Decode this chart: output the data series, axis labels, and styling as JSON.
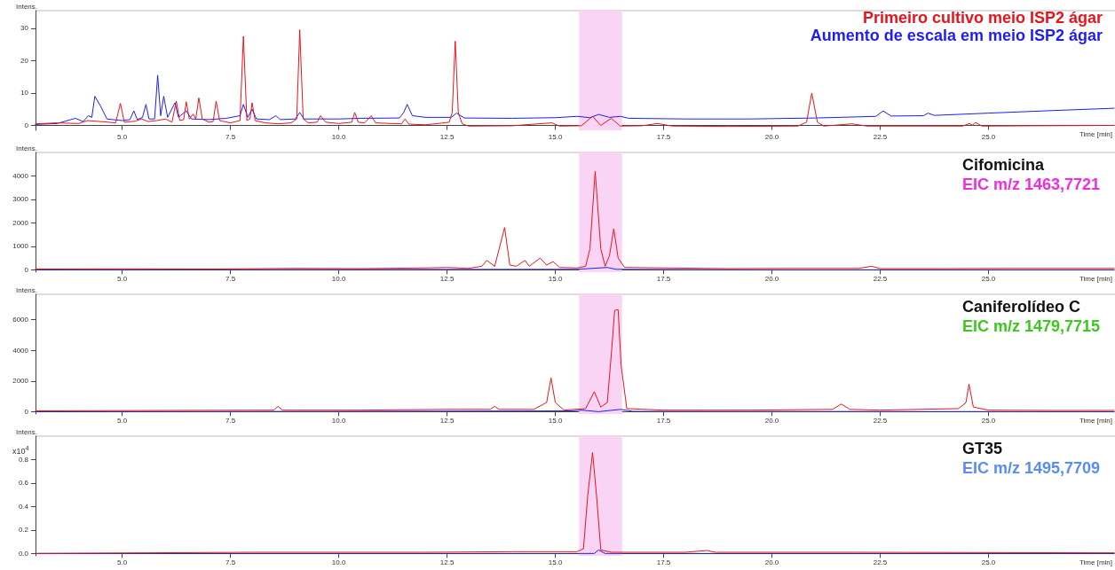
{
  "chart_data": [
    {
      "type": "line",
      "ylabel": "Intens.",
      "xlabel": "Time [min]",
      "legend": "top right",
      "grid": false,
      "marker": "none",
      "xlim": [
        3.0,
        27.9
      ],
      "xticks": [
        {
          "value": 5,
          "label": "5.0"
        },
        7.5,
        {
          "value": 10,
          "label": "10.0"
        },
        12.5,
        {
          "value": 15,
          "label": "15.0"
        },
        17.5,
        {
          "value": 20,
          "label": "20.0"
        },
        22.5,
        {
          "value": 25,
          "label": "25.0"
        }
      ],
      "ylim": [
        -1.5,
        35.4
      ],
      "yticks": [
        0,
        10,
        20,
        30
      ],
      "bands": [
        {
          "axis": "x",
          "from": 15.55,
          "to": 16.54,
          "color": "#fad4f4"
        }
      ],
      "series": [
        {
          "name": "Primeiro cultivo meio ISP2 ágar",
          "color": "#e8141b",
          "x": [
            3.0,
            3.5,
            4.0,
            4.2,
            4.5,
            4.85,
            4.96,
            5.05,
            5.3,
            5.45,
            5.6,
            5.8,
            6.0,
            6.15,
            6.25,
            6.33,
            6.42,
            6.48,
            6.55,
            6.64,
            6.7,
            6.77,
            6.85,
            7.0,
            7.1,
            7.17,
            7.25,
            7.5,
            7.72,
            7.8,
            7.88,
            7.95,
            8.0,
            8.07,
            8.3,
            8.6,
            8.9,
            9.03,
            9.1,
            9.18,
            9.3,
            9.5,
            9.58,
            9.7,
            10.0,
            10.3,
            10.37,
            10.45,
            10.6,
            10.75,
            10.85,
            11.2,
            11.45,
            11.53,
            11.62,
            12.0,
            12.3,
            12.55,
            12.62,
            12.69,
            12.76,
            12.85,
            13.0,
            14.0,
            14.92,
            15.1,
            15.6,
            15.86,
            16.05,
            16.29,
            16.5,
            17.0,
            17.36,
            17.7,
            19.0,
            20.6,
            20.8,
            20.92,
            21.05,
            21.2,
            21.85,
            22.2,
            24.4,
            24.56,
            24.63,
            24.7,
            24.85,
            26.0,
            27.9
          ],
          "values": [
            0.5,
            0.8,
            0.6,
            1.5,
            1.2,
            0.8,
            6.8,
            1,
            1.3,
            2,
            1.2,
            1.5,
            2,
            1,
            7.5,
            1.5,
            1.8,
            7.3,
            2,
            3.5,
            2,
            8.5,
            2,
            1,
            1.2,
            7.5,
            1.5,
            0.8,
            1.5,
            27.5,
            1.5,
            2,
            7,
            1.5,
            0.8,
            0.5,
            0.8,
            2,
            29.5,
            2,
            0.8,
            1,
            3,
            1,
            0.6,
            1,
            4,
            1,
            0.8,
            3,
            0.8,
            0.6,
            0.5,
            2,
            0.4,
            0.2,
            0.6,
            1,
            4,
            26,
            4,
            0.5,
            -0.2,
            -0.1,
            0.8,
            -0.2,
            -0.1,
            2.8,
            0,
            2.2,
            -0.2,
            -0.1,
            0.6,
            -0.2,
            -0.3,
            -0.2,
            1,
            10,
            1,
            -0.2,
            0.5,
            -0.2,
            -0.2,
            0.6,
            0.1,
            0.9,
            -0.2,
            -0.1,
            0
          ]
        },
        {
          "name": "Aumento de escala em meio ISP2 ágar",
          "color": "#1e1ef0",
          "x": [
            3.0,
            3.5,
            3.92,
            4.1,
            4.22,
            4.3,
            4.37,
            4.5,
            4.65,
            5.0,
            5.18,
            5.27,
            5.35,
            5.47,
            5.55,
            5.62,
            5.75,
            5.82,
            5.89,
            5.96,
            6.05,
            6.22,
            6.3,
            6.48,
            6.6,
            7.0,
            7.4,
            7.72,
            7.8,
            7.9,
            8.0,
            8.1,
            8.4,
            8.55,
            8.65,
            9.0,
            9.1,
            9.2,
            10.0,
            10.5,
            11.4,
            11.5,
            11.58,
            11.7,
            12.0,
            12.6,
            12.72,
            12.9,
            14.0,
            15.0,
            15.5,
            15.8,
            16.0,
            16.25,
            16.5,
            16.7,
            18.0,
            19.5,
            21.0,
            22.4,
            22.57,
            22.75,
            23.5,
            23.6,
            23.75,
            25.0,
            26.5,
            27.9
          ],
          "values": [
            0.3,
            0.6,
            2.2,
            1.2,
            3,
            2.5,
            9,
            6,
            2,
            1.5,
            1.8,
            4.5,
            1.8,
            2.5,
            6.5,
            2,
            2,
            15.5,
            3,
            9,
            2.5,
            7,
            2.5,
            4.5,
            2,
            1.8,
            2.2,
            3,
            6.5,
            2.5,
            5,
            2,
            1.8,
            3,
            1.8,
            2,
            4,
            2,
            2,
            2.2,
            2.3,
            4,
            6.5,
            3,
            2.5,
            2.5,
            3.8,
            2.3,
            2.2,
            2.4,
            2.8,
            2.4,
            3.4,
            2.5,
            2.8,
            2.2,
            2.0,
            2.0,
            2.3,
            2.8,
            4.5,
            2.9,
            3.0,
            3.8,
            3.1,
            3.8,
            4.6,
            5.3
          ]
        }
      ]
    },
    {
      "type": "line",
      "title": "Cifomicina",
      "subtitle": "EIC m/z 1463,7721",
      "ylabel": "Intens.",
      "xlabel": "Time [min]",
      "grid": false,
      "marker": "none",
      "xlim": [
        3.0,
        27.9
      ],
      "xticks": [
        {
          "value": 5,
          "label": "5.0"
        },
        7.5,
        {
          "value": 10,
          "label": "10.0"
        },
        12.5,
        {
          "value": 15,
          "label": "15.0"
        },
        17.5,
        {
          "value": 20,
          "label": "20.0"
        },
        22.5,
        {
          "value": 25,
          "label": "25.0"
        }
      ],
      "ylim": [
        -100,
        5000
      ],
      "yticks": [
        0,
        1000,
        2000,
        3000,
        4000
      ],
      "bands": [
        {
          "axis": "x",
          "from": 15.55,
          "to": 16.54,
          "color": "#fad4f4"
        }
      ],
      "series": [
        {
          "color": "#e8141b",
          "x": [
            3.0,
            5,
            7,
            9,
            10.5,
            12,
            12.5,
            13.0,
            13.3,
            13.42,
            13.6,
            13.83,
            13.95,
            14.1,
            14.3,
            14.4,
            14.65,
            14.8,
            14.95,
            15.1,
            15.5,
            15.7,
            15.8,
            15.92,
            16.05,
            16.15,
            16.25,
            16.35,
            16.45,
            16.6,
            17.5,
            19,
            20.5,
            22.0,
            22.3,
            22.5,
            24,
            25.5,
            27.9
          ],
          "values": [
            30,
            40,
            30,
            60,
            50,
            80,
            100,
            60,
            150,
            400,
            150,
            1800,
            200,
            150,
            400,
            150,
            500,
            200,
            350,
            100,
            80,
            150,
            900,
            4200,
            900,
            150,
            600,
            1750,
            500,
            100,
            80,
            50,
            60,
            60,
            150,
            50,
            50,
            60,
            60
          ]
        },
        {
          "color": "#1e1ef0",
          "x": [
            3.0,
            8,
            15.5,
            16.2,
            16.4,
            20,
            27.9
          ],
          "values": [
            0,
            10,
            20,
            100,
            20,
            0,
            0
          ]
        }
      ]
    },
    {
      "type": "line",
      "title": "Caniferolídeo C",
      "subtitle": "EIC m/z 1479,7715",
      "ylabel": "Intens.",
      "xlabel": "Time [min]",
      "grid": false,
      "marker": "none",
      "xlim": [
        3.0,
        27.9
      ],
      "xticks": [
        {
          "value": 5,
          "label": "5.0"
        },
        7.5,
        {
          "value": 10,
          "label": "10.0"
        },
        12.5,
        {
          "value": 15,
          "label": "15.0"
        },
        17.5,
        {
          "value": 20,
          "label": "20.0"
        },
        22.5,
        {
          "value": 25,
          "label": "25.0"
        }
      ],
      "ylim": [
        -150,
        7650
      ],
      "yticks": [
        0,
        2000,
        4000,
        6000
      ],
      "bands": [
        {
          "axis": "x",
          "from": 15.55,
          "to": 16.54,
          "color": "#fad4f4"
        }
      ],
      "series": [
        {
          "color": "#e8141b",
          "x": [
            3.0,
            6,
            8.5,
            8.6,
            8.7,
            10.5,
            12.5,
            13.5,
            13.6,
            13.7,
            14.5,
            14.8,
            14.9,
            15.0,
            15.2,
            15.7,
            15.9,
            16.05,
            16.2,
            16.3,
            16.37,
            16.45,
            16.52,
            16.65,
            17.5,
            19.5,
            21.4,
            21.6,
            21.8,
            22.5,
            24.3,
            24.4,
            24.48,
            24.55,
            24.65,
            25.0,
            26.5,
            27.9
          ],
          "values": [
            50,
            80,
            100,
            350,
            100,
            100,
            150,
            150,
            350,
            150,
            150,
            600,
            2200,
            600,
            100,
            200,
            1300,
            300,
            600,
            4000,
            6600,
            6650,
            3000,
            200,
            100,
            100,
            150,
            500,
            150,
            100,
            200,
            400,
            600,
            1800,
            300,
            100,
            80,
            80
          ]
        },
        {
          "color": "#1e1ef0",
          "x": [
            3.0,
            10,
            15.4,
            15.6,
            16.0,
            16.5,
            16.8,
            27.9
          ],
          "values": [
            0,
            20,
            50,
            100,
            0,
            150,
            20,
            0
          ]
        }
      ]
    },
    {
      "type": "line",
      "title": "GT35",
      "subtitle": "EIC m/z 1495,7709",
      "ylabel": "Intens.",
      "xlabel": "Time [min]",
      "annotations": [
        "x10$^{4}$"
      ],
      "grid": false,
      "marker": "none",
      "xlim": [
        3.0,
        27.9
      ],
      "xticks": [
        {
          "value": 5,
          "label": "5.0"
        },
        7.5,
        {
          "value": 10,
          "label": "10.0"
        },
        12.5,
        {
          "value": 15,
          "label": "15.0"
        },
        17.5,
        {
          "value": 20,
          "label": "20.0"
        },
        22.5,
        {
          "value": 25,
          "label": "25.0"
        }
      ],
      "ylim": [
        -0.02,
        1.0
      ],
      "yticks": [
        {
          "value": 0,
          "label": "0.0"
        },
        0.2,
        0.4,
        0.6,
        0.8
      ],
      "bands": [
        {
          "axis": "x",
          "from": 15.55,
          "to": 16.54,
          "color": "#fad4f4"
        }
      ],
      "series": [
        {
          "color": "#e8141b",
          "x": [
            3.0,
            5.5,
            8,
            12,
            14,
            15.5,
            15.65,
            15.75,
            15.86,
            15.95,
            16.05,
            16.3,
            18.0,
            18.5,
            18.7,
            22,
            27.9
          ],
          "values": [
            0,
            0.005,
            0.01,
            0.01,
            0.015,
            0.015,
            0.04,
            0.5,
            0.86,
            0.5,
            0.03,
            0.01,
            0.01,
            0.025,
            0.01,
            0.01,
            0.005
          ]
        },
        {
          "color": "#1e1ef0",
          "x": [
            3,
            10,
            15.9,
            16.0,
            16.15,
            27.9
          ],
          "values": [
            0,
            0,
            0,
            0.03,
            0,
            0
          ]
        }
      ]
    }
  ]
}
